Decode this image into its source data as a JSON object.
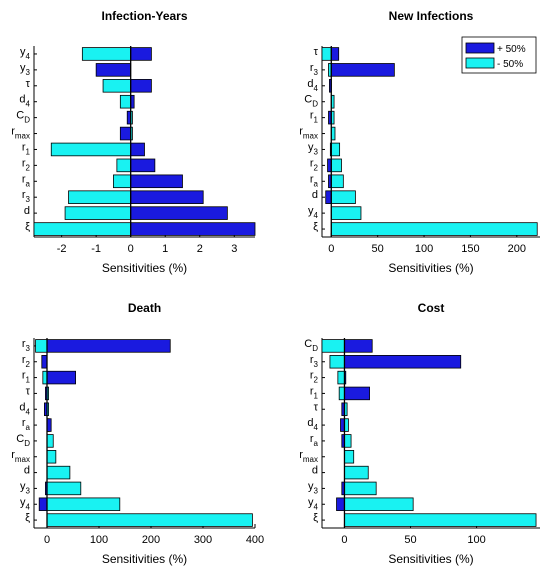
{
  "colors": {
    "plus": "#1a1adf",
    "minus": "#19f2f2",
    "edge": "#000000"
  },
  "legend": {
    "items": [
      "+ 50%",
      "- 50%"
    ],
    "position": "top-right",
    "panel": 1
  },
  "chart_data": [
    {
      "type": "bar",
      "orientation": "horizontal",
      "title": "Infection-Years",
      "xlabel": "Sensitivities (%)",
      "xlim": [
        -2.8,
        3.6
      ],
      "xticks": [
        -2,
        -1,
        0,
        1,
        2,
        3
      ],
      "categories": [
        {
          "base": "y",
          "sub": "4"
        },
        {
          "base": "y",
          "sub": "3"
        },
        {
          "base": "τ",
          "sub": ""
        },
        {
          "base": "d",
          "sub": "4"
        },
        {
          "base": "C",
          "sub": "D"
        },
        {
          "base": "r",
          "sub": "max"
        },
        {
          "base": "r",
          "sub": "1"
        },
        {
          "base": "r",
          "sub": "2"
        },
        {
          "base": "r",
          "sub": "a"
        },
        {
          "base": "r",
          "sub": "3"
        },
        {
          "base": "d",
          "sub": ""
        },
        {
          "base": "ξ",
          "sub": ""
        }
      ],
      "series": [
        {
          "name": "+ 50%",
          "values": [
            0.6,
            -1.0,
            0.6,
            0.1,
            -0.1,
            -0.3,
            0.4,
            0.7,
            1.5,
            2.1,
            2.8,
            3.6
          ]
        },
        {
          "name": "- 50%",
          "values": [
            -1.4,
            0,
            -0.8,
            -0.3,
            0.05,
            0.05,
            -2.3,
            -0.4,
            -0.5,
            -1.8,
            -1.9,
            -2.8
          ]
        }
      ]
    },
    {
      "type": "bar",
      "orientation": "horizontal",
      "title": "New Infections",
      "xlabel": "Sensitivities (%)",
      "xlim": [
        -10,
        225
      ],
      "xticks": [
        0,
        50,
        100,
        150,
        200
      ],
      "categories": [
        {
          "base": "τ",
          "sub": ""
        },
        {
          "base": "r",
          "sub": "3"
        },
        {
          "base": "d",
          "sub": "4"
        },
        {
          "base": "C",
          "sub": "D"
        },
        {
          "base": "r",
          "sub": "1"
        },
        {
          "base": "r",
          "sub": "max"
        },
        {
          "base": "y",
          "sub": "3"
        },
        {
          "base": "r",
          "sub": "2"
        },
        {
          "base": "r",
          "sub": "a"
        },
        {
          "base": "d",
          "sub": ""
        },
        {
          "base": "y",
          "sub": "4"
        },
        {
          "base": "ξ",
          "sub": ""
        }
      ],
      "series": [
        {
          "name": "+ 50%",
          "values": [
            8,
            68,
            -2,
            0,
            -3,
            0,
            -1,
            -4,
            -3,
            -6,
            0,
            0
          ]
        },
        {
          "name": "- 50%",
          "values": [
            -10,
            -3,
            0,
            3,
            3,
            4,
            9,
            11,
            13,
            26,
            32,
            222
          ]
        }
      ]
    },
    {
      "type": "bar",
      "orientation": "horizontal",
      "title": "Death",
      "xlabel": "Sensitivities (%)",
      "xlim": [
        -25,
        400
      ],
      "xticks": [
        0,
        100,
        200,
        300,
        400
      ],
      "categories": [
        {
          "base": "r",
          "sub": "3"
        },
        {
          "base": "r",
          "sub": "2"
        },
        {
          "base": "r",
          "sub": "1"
        },
        {
          "base": "τ",
          "sub": ""
        },
        {
          "base": "d",
          "sub": "4"
        },
        {
          "base": "r",
          "sub": "a"
        },
        {
          "base": "C",
          "sub": "D"
        },
        {
          "base": "r",
          "sub": "max"
        },
        {
          "base": "d",
          "sub": ""
        },
        {
          "base": "y",
          "sub": "3"
        },
        {
          "base": "y",
          "sub": "4"
        },
        {
          "base": "ξ",
          "sub": ""
        }
      ],
      "series": [
        {
          "name": "+ 50%",
          "values": [
            237,
            -10,
            55,
            -3,
            -5,
            8,
            0,
            0,
            0,
            -3,
            -15,
            0
          ]
        },
        {
          "name": "- 50%",
          "values": [
            -22,
            -5,
            -8,
            3,
            3,
            4,
            12,
            17,
            44,
            65,
            140,
            395
          ]
        }
      ]
    },
    {
      "type": "bar",
      "orientation": "horizontal",
      "title": "Cost",
      "xlabel": "Sensitivities (%)",
      "xlim": [
        -17,
        148
      ],
      "xticks": [
        0,
        50,
        100
      ],
      "categories": [
        {
          "base": "C",
          "sub": "D"
        },
        {
          "base": "r",
          "sub": "3"
        },
        {
          "base": "r",
          "sub": "2"
        },
        {
          "base": "r",
          "sub": "1"
        },
        {
          "base": "τ",
          "sub": ""
        },
        {
          "base": "d",
          "sub": "4"
        },
        {
          "base": "r",
          "sub": "a"
        },
        {
          "base": "r",
          "sub": "max"
        },
        {
          "base": "d",
          "sub": ""
        },
        {
          "base": "y",
          "sub": "3"
        },
        {
          "base": "y",
          "sub": "4"
        },
        {
          "base": "ξ",
          "sub": ""
        }
      ],
      "series": [
        {
          "name": "+ 50%",
          "values": [
            21,
            88,
            1,
            19,
            -2,
            -3,
            -2,
            0,
            0,
            -2,
            -6,
            0
          ]
        },
        {
          "name": "- 50%",
          "values": [
            -17,
            -11,
            -5,
            -4,
            2,
            3,
            5,
            7,
            18,
            24,
            52,
            145
          ]
        }
      ]
    }
  ]
}
